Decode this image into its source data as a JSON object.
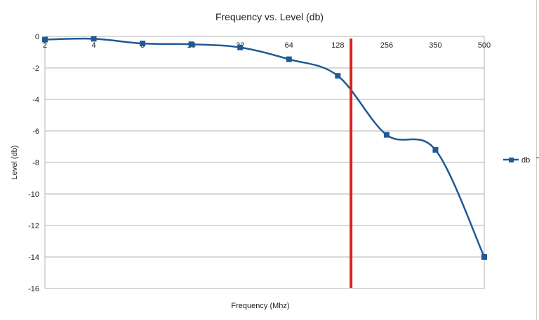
{
  "chart_data": {
    "type": "line",
    "title": "Frequency vs. Level (db)",
    "xlabel": "Frequency (Mhz)",
    "ylabel": "Level (db)",
    "categories": [
      "2",
      "4",
      "8",
      "16",
      "32",
      "64",
      "128",
      "256",
      "350",
      "500"
    ],
    "series": [
      {
        "name": "db",
        "color": "#1f5a96",
        "values": [
          -0.2,
          -0.15,
          -0.45,
          -0.5,
          -0.7,
          -1.45,
          -2.5,
          -6.25,
          -7.2,
          -14.0
        ]
      }
    ],
    "ylim": [
      -16,
      0
    ],
    "yticks": [
      0,
      -2,
      -4,
      -6,
      -8,
      -10,
      -12,
      -14,
      -16
    ],
    "grid": true,
    "legend_position": "right",
    "marker": {
      "color": "#d9261c",
      "type": "vertical-line",
      "x_between_categories": [
        "128",
        "256"
      ],
      "fraction": 0.27
    }
  }
}
